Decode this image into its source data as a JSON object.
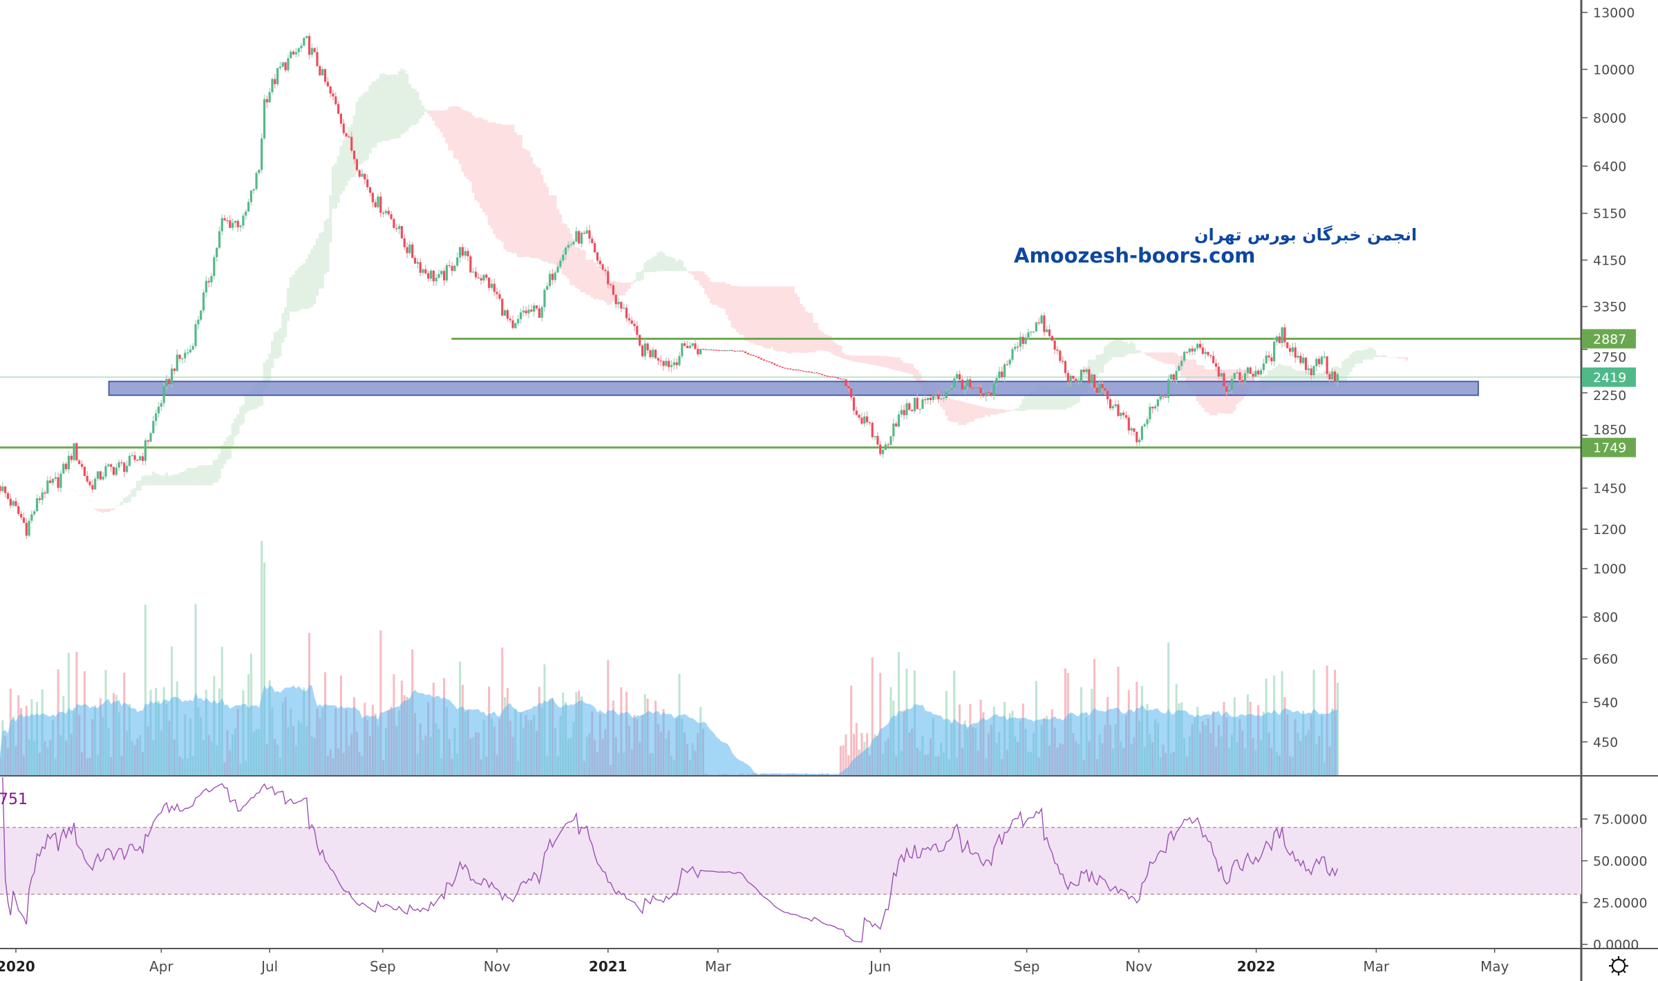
{
  "chart_data": {
    "type": "candlestick",
    "scale": "log",
    "x_unit": "bar index",
    "price_axis_ticks": [
      13000,
      10000,
      8000,
      6400,
      5150,
      4150,
      3350,
      2750,
      2250,
      1850,
      1450,
      1200,
      1000,
      800,
      660,
      540,
      450
    ],
    "time_axis_ticks": [
      {
        "label": "2020",
        "bar": 3,
        "bold": true
      },
      {
        "label": "Apr",
        "bar": 30.5
      },
      {
        "label": "Jul",
        "bar": 51
      },
      {
        "label": "Sep",
        "bar": 72.4
      },
      {
        "label": "Nov",
        "bar": 94
      },
      {
        "label": "2021",
        "bar": 115,
        "bold": true
      },
      {
        "label": "Mar",
        "bar": 135.8
      },
      {
        "label": "Jun",
        "bar": 166.5
      },
      {
        "label": "Sep",
        "bar": 194.2
      },
      {
        "label": "Nov",
        "bar": 215.4
      },
      {
        "label": "2022",
        "bar": 237.6,
        "bold": true
      },
      {
        "label": "Mar",
        "bar": 260.3
      },
      {
        "label": "May",
        "bar": 282.7
      }
    ],
    "close_path": [
      [
        0,
        1463
      ],
      [
        4,
        1264
      ],
      [
        5,
        1205
      ],
      [
        8,
        1429
      ],
      [
        11,
        1500
      ],
      [
        14,
        1734
      ],
      [
        17,
        1463
      ],
      [
        20,
        1574
      ],
      [
        24,
        1614
      ],
      [
        27,
        1694
      ],
      [
        30,
        2109
      ],
      [
        33,
        2564
      ],
      [
        36,
        2754
      ],
      [
        38,
        3350
      ],
      [
        40,
        3972
      ],
      [
        42,
        4943
      ],
      [
        46,
        4943
      ],
      [
        49,
        6310
      ],
      [
        50,
        8663
      ],
      [
        53,
        10020
      ],
      [
        56,
        10790
      ],
      [
        58,
        11330
      ],
      [
        60,
        10280
      ],
      [
        62,
        9100
      ],
      [
        64,
        8260
      ],
      [
        66,
        7130
      ],
      [
        68,
        6310
      ],
      [
        71,
        5454
      ],
      [
        74,
        5070
      ],
      [
        77,
        4385
      ],
      [
        80,
        3972
      ],
      [
        83,
        3785
      ],
      [
        85,
        3972
      ],
      [
        87.4,
        4385
      ],
      [
        89,
        3972
      ],
      [
        92,
        3785
      ],
      [
        94,
        3517
      ],
      [
        97,
        2965
      ],
      [
        99,
        3271
      ],
      [
        102,
        3271
      ],
      [
        104,
        3785
      ],
      [
        106,
        4276
      ],
      [
        109,
        4603
      ],
      [
        111,
        4603
      ],
      [
        113,
        4171
      ],
      [
        115,
        3785
      ],
      [
        117,
        3350
      ],
      [
        119,
        3192
      ],
      [
        121,
        2754
      ],
      [
        124,
        2692
      ],
      [
        127,
        2564
      ],
      [
        130,
        2825
      ],
      [
        132,
        2754
      ],
      [
        140,
        2731
      ],
      [
        144,
        2626
      ],
      [
        148,
        2525
      ],
      [
        154,
        2466
      ],
      [
        160,
        2383
      ],
      [
        162,
        2056
      ],
      [
        165,
        1866
      ],
      [
        167,
        1694
      ],
      [
        169,
        1959
      ],
      [
        172,
        2109
      ],
      [
        175,
        2162
      ],
      [
        178,
        2213
      ],
      [
        181,
        2405
      ],
      [
        184,
        2270
      ],
      [
        187,
        2181
      ],
      [
        189,
        2441
      ],
      [
        192,
        2754
      ],
      [
        195,
        3041
      ],
      [
        197,
        3113
      ],
      [
        199,
        2825
      ],
      [
        201,
        2564
      ],
      [
        203,
        2323
      ],
      [
        205,
        2500
      ],
      [
        208,
        2270
      ],
      [
        211,
        2109
      ],
      [
        213,
        1959
      ],
      [
        215,
        1778
      ],
      [
        217,
        2009
      ],
      [
        220,
        2213
      ],
      [
        223,
        2564
      ],
      [
        226,
        2825
      ],
      [
        229,
        2692
      ],
      [
        232,
        2323
      ],
      [
        235,
        2441
      ],
      [
        238,
        2500
      ],
      [
        240,
        2625
      ],
      [
        242.4,
        2965
      ],
      [
        245,
        2692
      ],
      [
        248,
        2500
      ],
      [
        250,
        2692
      ],
      [
        251.6,
        2405
      ],
      [
        253,
        2419
      ]
    ],
    "flat_range": [
      132,
      160
    ],
    "horizontal_lines": [
      {
        "price": 2887,
        "label": "2887",
        "color": "#6aa84f",
        "start_bar": 85.4
      },
      {
        "price": 2419,
        "label": "2419",
        "color": "#4fb98a",
        "start_bar": 0
      },
      {
        "price": 1749,
        "label": "1749",
        "color": "#6aa84f",
        "start_bar": 0
      }
    ],
    "zone": {
      "price_top": 2371,
      "price_bottom": 2225,
      "start_bar": 20.6,
      "end_bar": 279.6,
      "fill": "#8797cf",
      "border": "#4a5fb0"
    },
    "indicators": {
      "ichimoku": {
        "conversion": 9,
        "base": 26,
        "span_b": 52,
        "displacement": 26
      },
      "volume_ma": 20,
      "rsi": {
        "length": 14,
        "upper": 70,
        "lower": 30,
        "ticks": [
          "75.0000",
          "50.0000",
          "25.0000",
          "0.0000"
        ],
        "tick_values": [
          75,
          50,
          25,
          0
        ],
        "legend_value_fragment": "751"
      }
    },
    "colors": {
      "up": "#53b987",
      "down": "#eb4d5c",
      "rsi": "#9c4fb5",
      "volume_ma": "#5ab4ef"
    }
  },
  "watermark": {
    "persian": "انجمن خبرگان بورس تهران",
    "english": "Amoozesh-boors.com"
  },
  "settings_icon": "gear-icon"
}
